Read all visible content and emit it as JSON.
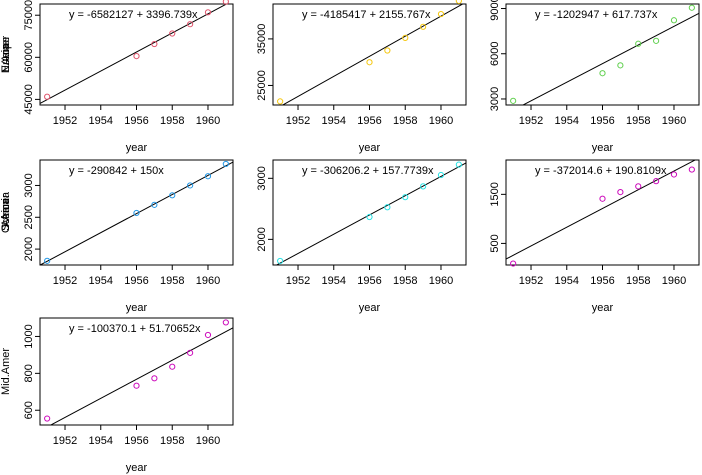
{
  "chart_data": [
    {
      "type": "scatter",
      "xlabel": "year",
      "ylabel": "N.Amer",
      "equation": "y = -6582127 + 3396.739x",
      "intercept": -6582127,
      "slope": 3396.739,
      "color": "#DF536B",
      "xlim": [
        1950.6,
        1961.4
      ],
      "xticks": [
        1952,
        1954,
        1956,
        1958,
        1960
      ],
      "ylim": [
        43000,
        79000
      ],
      "yticks": [
        45000,
        60000,
        75000
      ],
      "ytick_labels": [
        "45000",
        "60000",
        "75000"
      ],
      "x": [
        1951,
        1956,
        1957,
        1958,
        1959,
        1960,
        1961
      ],
      "y": [
        45939,
        60423,
        64721,
        68484,
        71799,
        76036,
        79831
      ]
    },
    {
      "type": "scatter",
      "xlabel": "year",
      "ylabel": "Europe",
      "equation": "y = -4185417 + 2155.767x",
      "intercept": -4185417,
      "slope": 2155.767,
      "color": "#F5C710",
      "xlim": [
        1950.6,
        1961.4
      ],
      "xticks": [
        1952,
        1954,
        1956,
        1958,
        1960
      ],
      "ylim": [
        20800,
        42500
      ],
      "yticks": [
        25000,
        35000
      ],
      "ytick_labels": [
        "25000",
        "35000"
      ],
      "x": [
        1951,
        1956,
        1957,
        1958,
        1959,
        1960,
        1961
      ],
      "y": [
        21574,
        29990,
        32510,
        35218,
        37598,
        40341,
        43173
      ]
    },
    {
      "type": "scatter",
      "xlabel": "year",
      "ylabel": "Asia",
      "equation": "y = -1202947 + 617.737x",
      "intercept": -1202947,
      "slope": 617.737,
      "color": "#61D04F",
      "xlim": [
        1950.6,
        1961.4
      ],
      "xticks": [
        1952,
        1954,
        1956,
        1958,
        1960
      ],
      "ylim": [
        2600,
        9300
      ],
      "yticks": [
        3000,
        6000,
        9000
      ],
      "ytick_labels": [
        "3000",
        "6000",
        "9000"
      ],
      "x": [
        1951,
        1956,
        1957,
        1958,
        1959,
        1960,
        1961
      ],
      "y": [
        2876,
        4708,
        5230,
        6662,
        6856,
        8220,
        9053
      ]
    },
    {
      "type": "scatter",
      "xlabel": "year",
      "ylabel": "S.Amer",
      "equation": "y = -290842 + 150x",
      "intercept": -290842,
      "slope": 150,
      "color": "#2297E6",
      "xlim": [
        1950.6,
        1961.4
      ],
      "xticks": [
        1952,
        1954,
        1956,
        1958,
        1960
      ],
      "ylim": [
        1750,
        3400
      ],
      "yticks": [
        2000,
        2500,
        3000
      ],
      "ytick_labels": [
        "2000",
        "2500",
        "3000"
      ],
      "x": [
        1951,
        1956,
        1957,
        1958,
        1959,
        1960,
        1961
      ],
      "y": [
        1815,
        2568,
        2695,
        2845,
        3000,
        3145,
        3338
      ]
    },
    {
      "type": "scatter",
      "xlabel": "year",
      "ylabel": "Oceania",
      "equation": "y = -306206.2 + 157.7739x",
      "intercept": -306206.2,
      "slope": 157.7739,
      "color": "#28E2E5",
      "xlim": [
        1950.6,
        1961.4
      ],
      "xticks": [
        1952,
        1954,
        1956,
        1958,
        1960
      ],
      "ylim": [
        1580,
        3300
      ],
      "yticks": [
        2000,
        3000
      ],
      "ytick_labels": [
        "2000",
        "3000"
      ],
      "x": [
        1951,
        1956,
        1957,
        1958,
        1959,
        1960,
        1961
      ],
      "y": [
        1646,
        2366,
        2526,
        2691,
        2868,
        3054,
        3224
      ]
    },
    {
      "type": "scatter",
      "xlabel": "year",
      "ylabel": "Africa",
      "equation": "y = -372014.6 + 190.8109x",
      "intercept": -372014.6,
      "slope": 190.8109,
      "color": "#CD0BBC",
      "xlim": [
        1950.6,
        1961.4
      ],
      "xticks": [
        1952,
        1954,
        1956,
        1958,
        1960
      ],
      "ylim": [
        60,
        2200
      ],
      "yticks": [
        500,
        1500
      ],
      "ytick_labels": [
        "500",
        "1500"
      ],
      "x": [
        1951,
        1956,
        1957,
        1958,
        1959,
        1960,
        1961
      ],
      "y": [
        89,
        1411,
        1546,
        1663,
        1769,
        1905,
        2005
      ]
    },
    {
      "type": "scatter",
      "xlabel": "year",
      "ylabel": "Mid.Amer",
      "equation": "y = -100370.1 + 51.70652x",
      "intercept": -100370.1,
      "slope": 51.70652,
      "color": "#CD0BBC",
      "xlim": [
        1950.6,
        1961.4
      ],
      "xticks": [
        1952,
        1954,
        1956,
        1958,
        1960
      ],
      "ylim": [
        520,
        1100
      ],
      "yticks": [
        600,
        800,
        1000
      ],
      "ytick_labels": [
        "600",
        "800",
        "1000"
      ],
      "x": [
        1951,
        1956,
        1957,
        1958,
        1959,
        1960,
        1961
      ],
      "y": [
        555,
        733,
        773,
        836,
        911,
        1008,
        1076
      ]
    }
  ]
}
